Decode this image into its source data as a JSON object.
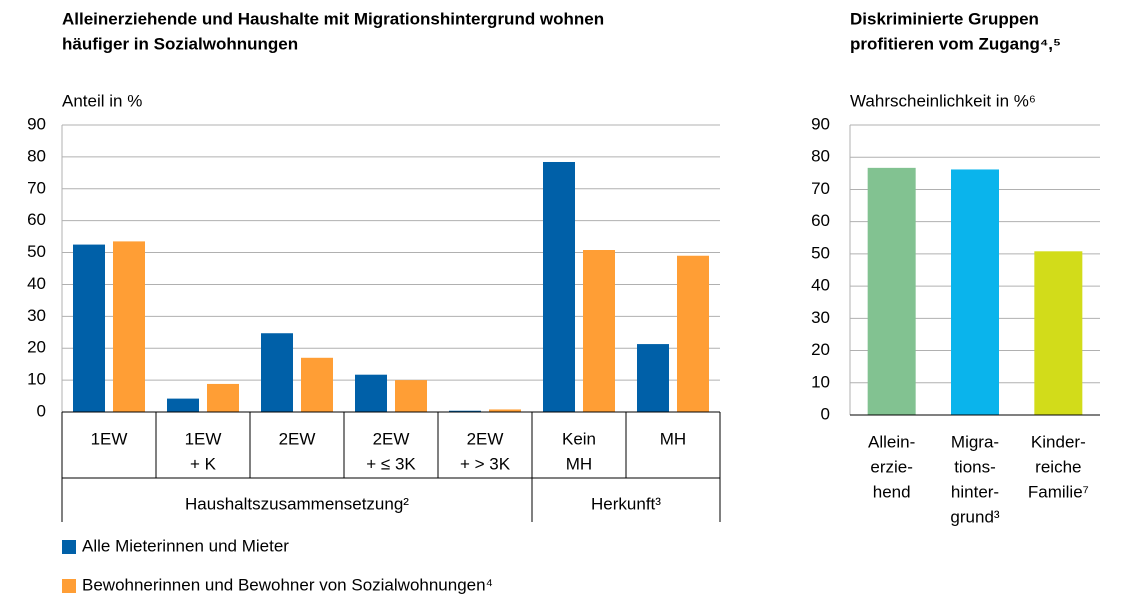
{
  "chart_data": [
    {
      "type": "grouped_bar",
      "title": [
        "Alleinerziehende und Haushalte mit Migrationshintergrund wohnen",
        "häufiger in Sozialwohnungen"
      ],
      "y_label": "Anteil in %",
      "groups": [
        {
          "label": "Haushaltszusammensetzung²",
          "categories": [
            [
              "1EW"
            ],
            [
              "1EW",
              "+ K"
            ],
            [
              "2EW"
            ],
            [
              "2EW",
              "+ ≤ 3K"
            ],
            [
              "2EW",
              "+ > 3K"
            ]
          ]
        },
        {
          "label": "Herkunft³",
          "categories": [
            [
              "Kein",
              "MH"
            ],
            [
              "MH"
            ]
          ]
        }
      ],
      "series": [
        {
          "name": "Alle Mieterinnen und Mieter",
          "color": "#0060a8",
          "values": [
            52.5,
            4.2,
            24.7,
            11.7,
            0.4,
            78.4,
            21.3
          ]
        },
        {
          "name": "Bewohnerinnen und Bewohner von Sozialwohnungen⁴",
          "color": "#ff9e35",
          "values": [
            53.5,
            8.8,
            17.0,
            10.0,
            0.8,
            50.8,
            49.0
          ]
        }
      ],
      "ylim": [
        0,
        90
      ],
      "yticks": [
        0,
        10,
        20,
        30,
        40,
        50,
        60,
        70,
        80,
        90
      ],
      "grid": true
    },
    {
      "type": "bar",
      "title": [
        "Diskriminierte Gruppen",
        "profitieren vom Zugang⁴,⁵"
      ],
      "y_label": "Wahrscheinlichkeit in %⁶",
      "categories": [
        [
          "Allein-",
          "erzie-",
          "hend"
        ],
        [
          "Migra-",
          "tions-",
          "hinter-",
          "grund³"
        ],
        [
          "Kinder-",
          "reiche",
          "Familie⁷"
        ]
      ],
      "values": [
        76.7,
        76.2,
        50.8
      ],
      "colors": [
        "#82c291",
        "#0ab4ec",
        "#d2dc1a"
      ],
      "ylim": [
        0,
        90
      ],
      "yticks": [
        0,
        10,
        20,
        30,
        40,
        50,
        60,
        70,
        80,
        90
      ],
      "grid": true
    }
  ]
}
